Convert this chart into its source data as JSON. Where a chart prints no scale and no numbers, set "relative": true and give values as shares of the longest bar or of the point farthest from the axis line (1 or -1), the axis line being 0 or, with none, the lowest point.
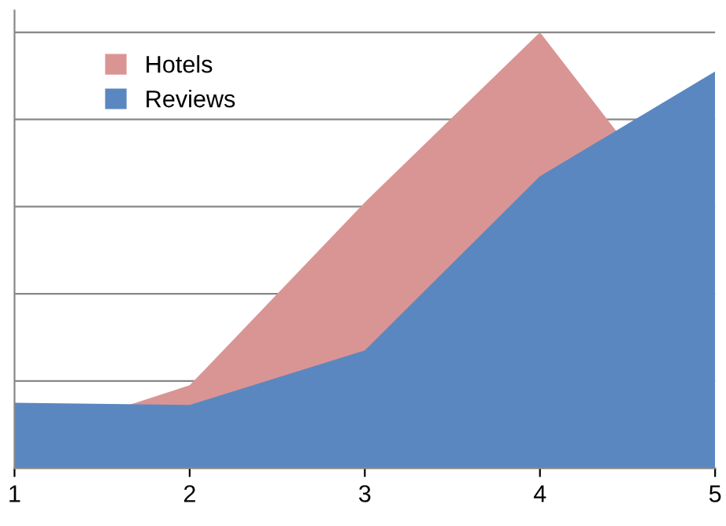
{
  "chart_data": {
    "type": "area",
    "relative": true,
    "x": [
      1,
      2,
      3,
      4,
      5
    ],
    "xlim": [
      1,
      5
    ],
    "xticks": [
      1,
      2,
      3,
      4,
      5
    ],
    "series": [
      {
        "name": "Hotels",
        "color": "#d99594",
        "values": [
          0.06,
          0.19,
          0.61,
          1,
          0.48
        ]
      },
      {
        "name": "Reviews",
        "color": "#5b87c0",
        "values": [
          0.15,
          0.145,
          0.27,
          0.67,
          0.91
        ]
      }
    ],
    "grid": "y",
    "legend": "top left",
    "tick_labels": "x"
  }
}
